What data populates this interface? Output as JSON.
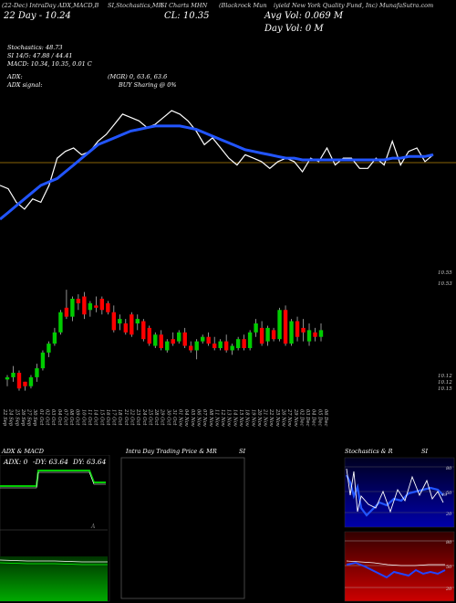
{
  "header": {
    "items": [
      "(22-Dec) IntraDay ADX,MACD,B",
      "SI,Stochastics,MR",
      "SI Charts MHN",
      "(Blackrock Mun",
      "iyield New York Quality Fund, Inc) MunafaSutra.com"
    ]
  },
  "quote": {
    "date_close": "22 Day - 10.24",
    "close": "CL: 10.35",
    "avg_vol": "Avg Vol: 0.069  M",
    "day_vol": "Day Vol: 0   M"
  },
  "indicators": {
    "stoch": "Stochastics: 48.73",
    "si": "SI 14/5: 47.88 / 44.41",
    "macd": "MACD: 10.34, 10.35, 0.01 C",
    "adx": "ADX:",
    "adx_vals": "(MGR) 0, 63.6, 63.6",
    "adx_signal": "ADX  signal:",
    "buy": "BUY Sharing @ 0%"
  },
  "price_labels": {
    "top1": "10.55",
    "top2": "10.53",
    "bot1": "10.12",
    "bot2": "10.12",
    "bot3": "10.15"
  },
  "dates": [
    "22 Sep",
    "24 Sep",
    "25 Sep",
    "26 Sep",
    "27 Sep",
    "30 Sep",
    "01 Oct",
    "02 Oct",
    "03 Oct",
    "04 Oct",
    "07 Oct",
    "08 Oct",
    "09 Oct",
    "10 Oct",
    "11 Oct",
    "14 Oct",
    "15 Oct",
    "16 Oct",
    "17 Oct",
    "18 Oct",
    "21 Oct",
    "22 Oct",
    "23 Oct",
    "24 Oct",
    "25 Oct",
    "28 Oct",
    "29 Oct",
    "30 Oct",
    "31 Oct",
    "01 Nov",
    "04 Nov",
    "05 Nov",
    "06 Nov",
    "07 Nov",
    "08 Nov",
    "11 Nov",
    "12 Nov",
    "13 Nov",
    "14 Nov",
    "15 Nov",
    "18 Nov",
    "19 Nov",
    "20 Nov",
    "21 Nov",
    "22 Nov",
    "25 Nov",
    "26 Nov",
    "27 Nov",
    "29 Nov",
    "02 Dec",
    "03 Dec",
    "04 Dec",
    "05 Dec",
    "06 Dec"
  ],
  "panels": {
    "adx": {
      "title": "ADX  & MACD",
      "adx_label": "ADX: 0",
      "diminus": "-DY: 63.64",
      "diplus": "DY: 63.64"
    },
    "intraday": {
      "title": "Intra Day Trading Price  & MR",
      "suffix": "SI"
    },
    "stoch": {
      "title": "Stochastics & R",
      "suffix": "SI",
      "ticks_top": [
        "80",
        "50",
        "20"
      ],
      "ticks_bot": [
        "80",
        "50",
        "20"
      ],
      "val": "49"
    }
  },
  "colors": {
    "up": "#00cc00",
    "down": "#ff0000",
    "ma": "#2255ff",
    "price": "#ffffff",
    "hline": "#b8860b"
  },
  "chart_data": [
    {
      "type": "line",
      "title": "",
      "series": [
        {
          "values": [
            10.2,
            10.18,
            10.1,
            10.06,
            10.12,
            10.1,
            10.2,
            10.36,
            10.4,
            10.42,
            10.38,
            10.4,
            10.46,
            10.5,
            10.56,
            10.62,
            10.6,
            10.58,
            10.54,
            10.56,
            10.6,
            10.64,
            10.62,
            10.58,
            10.52,
            10.44,
            10.48,
            10.42,
            10.36,
            10.32,
            10.38,
            10.36,
            10.34,
            10.3,
            10.34,
            10.36,
            10.34,
            10.28,
            10.36,
            10.34,
            10.42,
            10.32,
            10.36,
            10.36,
            10.3,
            10.3,
            10.36,
            10.32,
            10.46,
            10.32,
            10.4,
            10.42,
            10.34,
            10.38
          ]
        },
        {
          "values": [
            10.0,
            10.04,
            10.08,
            10.12,
            10.16,
            10.2,
            10.22,
            10.24,
            10.28,
            10.32,
            10.36,
            10.4,
            10.44,
            10.46,
            10.48,
            10.5,
            10.52,
            10.53,
            10.54,
            10.55,
            10.55,
            10.55,
            10.55,
            10.54,
            10.53,
            10.51,
            10.49,
            10.47,
            10.45,
            10.43,
            10.41,
            10.4,
            10.39,
            10.38,
            10.37,
            10.36,
            10.36,
            10.35,
            10.35,
            10.35,
            10.35,
            10.35,
            10.35,
            10.35,
            10.35,
            10.35,
            10.35,
            10.35,
            10.36,
            10.36,
            10.37,
            10.37,
            10.37,
            10.38
          ]
        }
      ]
    },
    {
      "type": "candlestick",
      "title": "",
      "candles": [
        [
          10.13,
          10.15,
          10.1,
          10.14
        ],
        [
          10.14,
          10.19,
          10.12,
          10.16
        ],
        [
          10.16,
          10.17,
          10.08,
          10.09
        ],
        [
          10.12,
          10.12,
          10.08,
          10.1
        ],
        [
          10.1,
          10.15,
          10.09,
          10.14
        ],
        [
          10.14,
          10.2,
          10.12,
          10.18
        ],
        [
          10.18,
          10.26,
          10.17,
          10.25
        ],
        [
          10.25,
          10.3,
          10.23,
          10.29
        ],
        [
          10.29,
          10.36,
          10.28,
          10.34
        ],
        [
          10.34,
          10.44,
          10.33,
          10.43
        ],
        [
          10.45,
          10.53,
          10.4,
          10.41
        ],
        [
          10.41,
          10.5,
          10.39,
          10.49
        ],
        [
          10.49,
          10.51,
          10.44,
          10.47
        ],
        [
          10.5,
          10.52,
          10.4,
          10.42
        ],
        [
          10.44,
          10.48,
          10.41,
          10.47
        ],
        [
          10.46,
          10.5,
          10.43,
          10.45
        ],
        [
          10.49,
          10.5,
          10.42,
          10.44
        ],
        [
          10.47,
          10.48,
          10.42,
          10.43
        ],
        [
          10.43,
          10.46,
          10.34,
          10.35
        ],
        [
          10.38,
          10.42,
          10.35,
          10.4
        ],
        [
          10.38,
          10.4,
          10.33,
          10.34
        ],
        [
          10.42,
          10.43,
          10.32,
          10.33
        ],
        [
          10.38,
          10.42,
          10.35,
          10.4
        ],
        [
          10.39,
          10.4,
          10.3,
          10.31
        ],
        [
          10.36,
          10.37,
          10.28,
          10.29
        ],
        [
          10.28,
          10.34,
          10.27,
          10.33
        ],
        [
          10.33,
          10.35,
          10.26,
          10.27
        ],
        [
          10.26,
          10.31,
          10.25,
          10.3
        ],
        [
          10.31,
          10.34,
          10.28,
          10.29
        ],
        [
          10.3,
          10.35,
          10.29,
          10.34
        ],
        [
          10.34,
          10.36,
          10.27,
          10.28
        ],
        [
          10.28,
          10.3,
          10.25,
          10.26
        ],
        [
          10.26,
          10.31,
          10.22,
          10.3
        ],
        [
          10.3,
          10.33,
          10.29,
          10.32
        ],
        [
          10.32,
          10.34,
          10.28,
          10.29
        ],
        [
          10.29,
          10.32,
          10.26,
          10.27
        ],
        [
          10.27,
          10.31,
          10.26,
          10.3
        ],
        [
          10.3,
          10.33,
          10.25,
          10.26
        ],
        [
          10.26,
          10.29,
          10.24,
          10.28
        ],
        [
          10.27,
          10.32,
          10.26,
          10.31
        ],
        [
          10.31,
          10.33,
          10.26,
          10.27
        ],
        [
          10.27,
          10.35,
          10.26,
          10.34
        ],
        [
          10.34,
          10.4,
          10.32,
          10.38
        ],
        [
          10.36,
          10.39,
          10.28,
          10.29
        ],
        [
          10.3,
          10.37,
          10.28,
          10.36
        ],
        [
          10.35,
          10.36,
          10.3,
          10.31
        ],
        [
          10.31,
          10.45,
          10.3,
          10.44
        ],
        [
          10.44,
          10.46,
          10.28,
          10.29
        ],
        [
          10.29,
          10.4,
          10.28,
          10.39
        ],
        [
          10.39,
          10.41,
          10.3,
          10.32
        ],
        [
          10.36,
          10.4,
          10.3,
          10.34
        ],
        [
          10.3,
          10.38,
          10.28,
          10.35
        ],
        [
          10.34,
          10.36,
          10.3,
          10.32
        ],
        [
          10.32,
          10.38,
          10.3,
          10.35
        ]
      ]
    }
  ]
}
